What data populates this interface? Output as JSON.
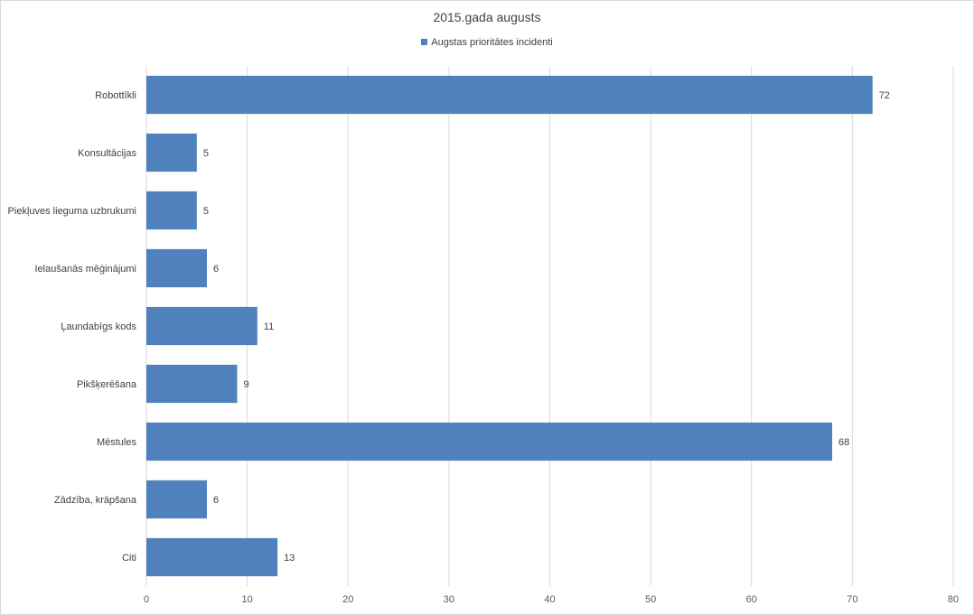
{
  "chart_data": {
    "type": "bar",
    "orientation": "horizontal",
    "title": "2015.gada augusts",
    "categories": [
      "Robottīkli",
      "Konsultācijas",
      "Piekļuves lieguma uzbrukumi",
      "Ielaušanās mēģinājumi",
      "Ļaundabīgs kods",
      "Pikšķerēšana",
      "Mēstules",
      "Zādzība, krāpšana",
      "Citi"
    ],
    "series": [
      {
        "name": "Augstas prioritātes incidenti",
        "values": [
          72,
          5,
          5,
          6,
          11,
          9,
          68,
          6,
          13
        ]
      }
    ],
    "xlim": [
      0,
      80
    ],
    "xticks": [
      0,
      10,
      20,
      30,
      40,
      50,
      60,
      70,
      80
    ],
    "grid": "vertical",
    "legend": "top",
    "data_labels": true,
    "colors": {
      "bar": "#4f81bd",
      "grid": "#d9d9d9"
    }
  }
}
